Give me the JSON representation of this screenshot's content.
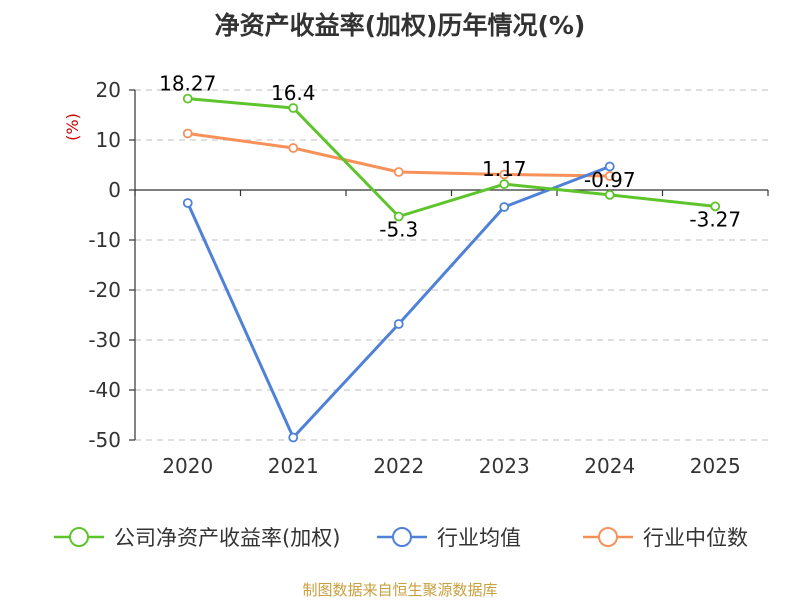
{
  "chart_data": {
    "type": "line",
    "title": "净资产收益率(加权)历年情况(%)",
    "ylabel": "(%)",
    "categories": [
      "2020",
      "2021",
      "2022",
      "2023",
      "2024",
      "2025"
    ],
    "ylim": [
      -50,
      20
    ],
    "yticks": [
      20,
      10,
      0,
      -10,
      -20,
      -30,
      -40,
      -50
    ],
    "ytick_labels": [
      "20",
      "10",
      "0",
      "-10",
      "-20",
      "-30",
      "-40",
      "-50"
    ],
    "grid": true,
    "legend_position": "bottom",
    "series": [
      {
        "name": "公司净资产收益率(加权)",
        "color": "#5ec42c",
        "values": [
          18.27,
          16.4,
          -5.3,
          1.17,
          -0.97,
          -3.27
        ],
        "labels": [
          "18.27",
          "16.4",
          "-5.3",
          "1.17",
          "-0.97",
          "-3.27"
        ]
      },
      {
        "name": "行业均值",
        "color": "#4f81d8",
        "values": [
          -2.6,
          -49.5,
          -26.8,
          -3.4,
          4.7,
          null
        ]
      },
      {
        "name": "行业中位数",
        "color": "#f79159",
        "values": [
          11.3,
          8.4,
          3.6,
          3.1,
          2.8,
          null
        ]
      }
    ],
    "source": "制图数据来自恒生聚源数据库",
    "colors": {
      "title": "#333333",
      "unit": "#cc0000",
      "source": "#c8a040",
      "grid": "#cccccc"
    }
  }
}
